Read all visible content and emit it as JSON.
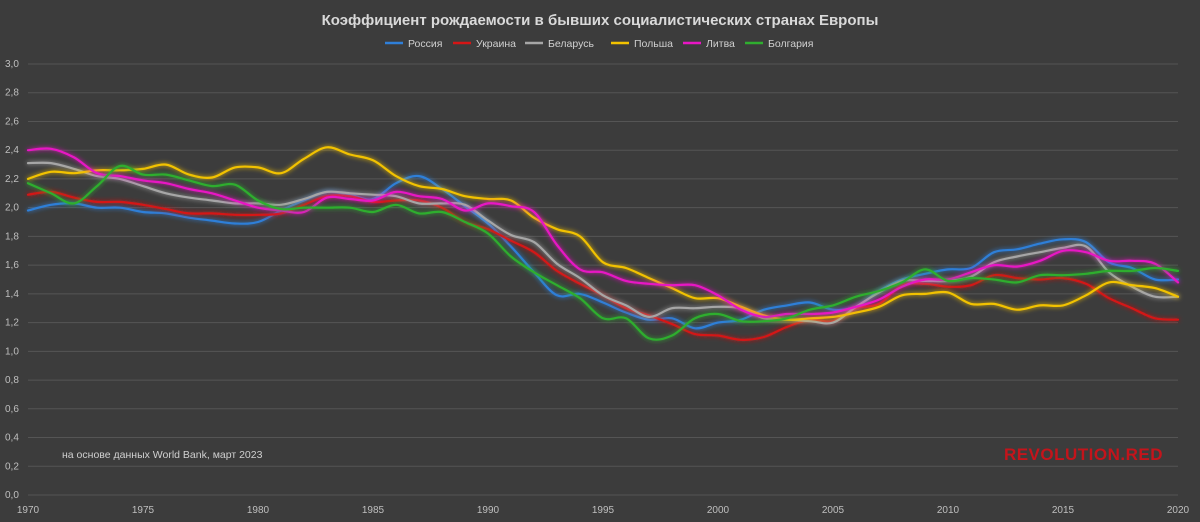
{
  "chart_data": {
    "type": "line",
    "title": "Коэффициент рождаемости в бывших социалистических странах Европы",
    "note": "на основе данных World Bank, март 2023",
    "brand": "REVOLUTION.RED",
    "xlim": [
      1970,
      2020
    ],
    "ylim": [
      0,
      3.0
    ],
    "x_ticks": [
      "1970",
      "1975",
      "1980",
      "1985",
      "1990",
      "1995",
      "2000",
      "2005",
      "2010",
      "2015",
      "2020"
    ],
    "y_ticks": [
      "0,0",
      "0,2",
      "0,4",
      "0,6",
      "0,8",
      "1,0",
      "1,2",
      "1,4",
      "1,6",
      "1,8",
      "2,0",
      "2,2",
      "2,4",
      "2,6",
      "2,8",
      "3,0"
    ],
    "grid": true,
    "legend_position": "top",
    "x": [
      1970,
      1971,
      1972,
      1973,
      1974,
      1975,
      1976,
      1977,
      1978,
      1979,
      1980,
      1981,
      1982,
      1983,
      1984,
      1985,
      1986,
      1987,
      1988,
      1989,
      1990,
      1991,
      1992,
      1993,
      1994,
      1995,
      1996,
      1997,
      1998,
      1999,
      2000,
      2001,
      2002,
      2003,
      2004,
      2005,
      2006,
      2007,
      2008,
      2009,
      2010,
      2011,
      2012,
      2013,
      2014,
      2015,
      2016,
      2017,
      2018,
      2019,
      2020
    ],
    "series": [
      {
        "name": "Россия",
        "color": "#2f7fd8",
        "values": [
          1.98,
          2.02,
          2.03,
          2.0,
          2.0,
          1.97,
          1.96,
          1.93,
          1.91,
          1.89,
          1.9,
          1.98,
          2.05,
          2.11,
          2.09,
          2.06,
          2.17,
          2.22,
          2.13,
          2.01,
          1.89,
          1.73,
          1.55,
          1.39,
          1.4,
          1.34,
          1.27,
          1.22,
          1.23,
          1.16,
          1.2,
          1.22,
          1.29,
          1.32,
          1.34,
          1.29,
          1.31,
          1.42,
          1.5,
          1.54,
          1.57,
          1.58,
          1.69,
          1.71,
          1.75,
          1.78,
          1.76,
          1.62,
          1.58,
          1.5,
          1.5
        ]
      },
      {
        "name": "Украина",
        "color": "#d51515",
        "values": [
          2.09,
          2.11,
          2.07,
          2.04,
          2.04,
          2.02,
          1.99,
          1.96,
          1.96,
          1.95,
          1.95,
          1.96,
          2.02,
          2.08,
          2.08,
          2.04,
          2.05,
          2.05,
          2.0,
          1.9,
          1.85,
          1.77,
          1.69,
          1.56,
          1.47,
          1.39,
          1.3,
          1.25,
          1.19,
          1.12,
          1.11,
          1.08,
          1.1,
          1.17,
          1.22,
          1.21,
          1.3,
          1.33,
          1.46,
          1.47,
          1.45,
          1.46,
          1.53,
          1.51,
          1.5,
          1.51,
          1.47,
          1.37,
          1.3,
          1.23,
          1.22
        ]
      },
      {
        "name": "Беларусь",
        "color": "#a6a6a6",
        "values": [
          2.31,
          2.31,
          2.27,
          2.22,
          2.2,
          2.15,
          2.1,
          2.07,
          2.05,
          2.03,
          2.03,
          2.02,
          2.06,
          2.11,
          2.1,
          2.09,
          2.08,
          2.03,
          2.03,
          2.02,
          1.91,
          1.81,
          1.76,
          1.61,
          1.51,
          1.39,
          1.32,
          1.24,
          1.3,
          1.3,
          1.31,
          1.3,
          1.23,
          1.22,
          1.21,
          1.2,
          1.31,
          1.41,
          1.49,
          1.49,
          1.49,
          1.52,
          1.62,
          1.66,
          1.69,
          1.72,
          1.73,
          1.55,
          1.45,
          1.38,
          1.38
        ]
      },
      {
        "name": "Польша",
        "color": "#f2c200",
        "values": [
          2.2,
          2.25,
          2.24,
          2.26,
          2.26,
          2.27,
          2.3,
          2.23,
          2.21,
          2.28,
          2.28,
          2.24,
          2.34,
          2.42,
          2.37,
          2.33,
          2.22,
          2.15,
          2.13,
          2.08,
          2.06,
          2.05,
          1.93,
          1.85,
          1.8,
          1.62,
          1.58,
          1.51,
          1.44,
          1.37,
          1.37,
          1.31,
          1.25,
          1.22,
          1.23,
          1.24,
          1.27,
          1.31,
          1.39,
          1.4,
          1.41,
          1.33,
          1.33,
          1.29,
          1.32,
          1.32,
          1.39,
          1.48,
          1.46,
          1.44,
          1.38
        ]
      },
      {
        "name": "Литва",
        "color": "#e816c4",
        "values": [
          2.4,
          2.41,
          2.35,
          2.24,
          2.22,
          2.19,
          2.17,
          2.13,
          2.1,
          2.05,
          2.0,
          1.98,
          1.97,
          2.07,
          2.06,
          2.05,
          2.11,
          2.08,
          2.06,
          1.98,
          2.03,
          2.01,
          1.97,
          1.74,
          1.57,
          1.55,
          1.49,
          1.47,
          1.46,
          1.46,
          1.39,
          1.29,
          1.24,
          1.26,
          1.26,
          1.27,
          1.31,
          1.36,
          1.45,
          1.5,
          1.5,
          1.55,
          1.6,
          1.59,
          1.63,
          1.7,
          1.69,
          1.63,
          1.63,
          1.61,
          1.48
        ]
      },
      {
        "name": "Болгария",
        "color": "#2fae2f",
        "values": [
          2.17,
          2.1,
          2.03,
          2.15,
          2.29,
          2.23,
          2.23,
          2.19,
          2.15,
          2.16,
          2.05,
          1.99,
          2.0,
          2.0,
          2.0,
          1.97,
          2.02,
          1.96,
          1.97,
          1.9,
          1.82,
          1.66,
          1.55,
          1.46,
          1.37,
          1.23,
          1.23,
          1.09,
          1.11,
          1.23,
          1.26,
          1.21,
          1.21,
          1.23,
          1.29,
          1.32,
          1.38,
          1.42,
          1.48,
          1.57,
          1.49,
          1.51,
          1.5,
          1.48,
          1.53,
          1.53,
          1.54,
          1.56,
          1.56,
          1.58,
          1.56
        ]
      }
    ]
  }
}
